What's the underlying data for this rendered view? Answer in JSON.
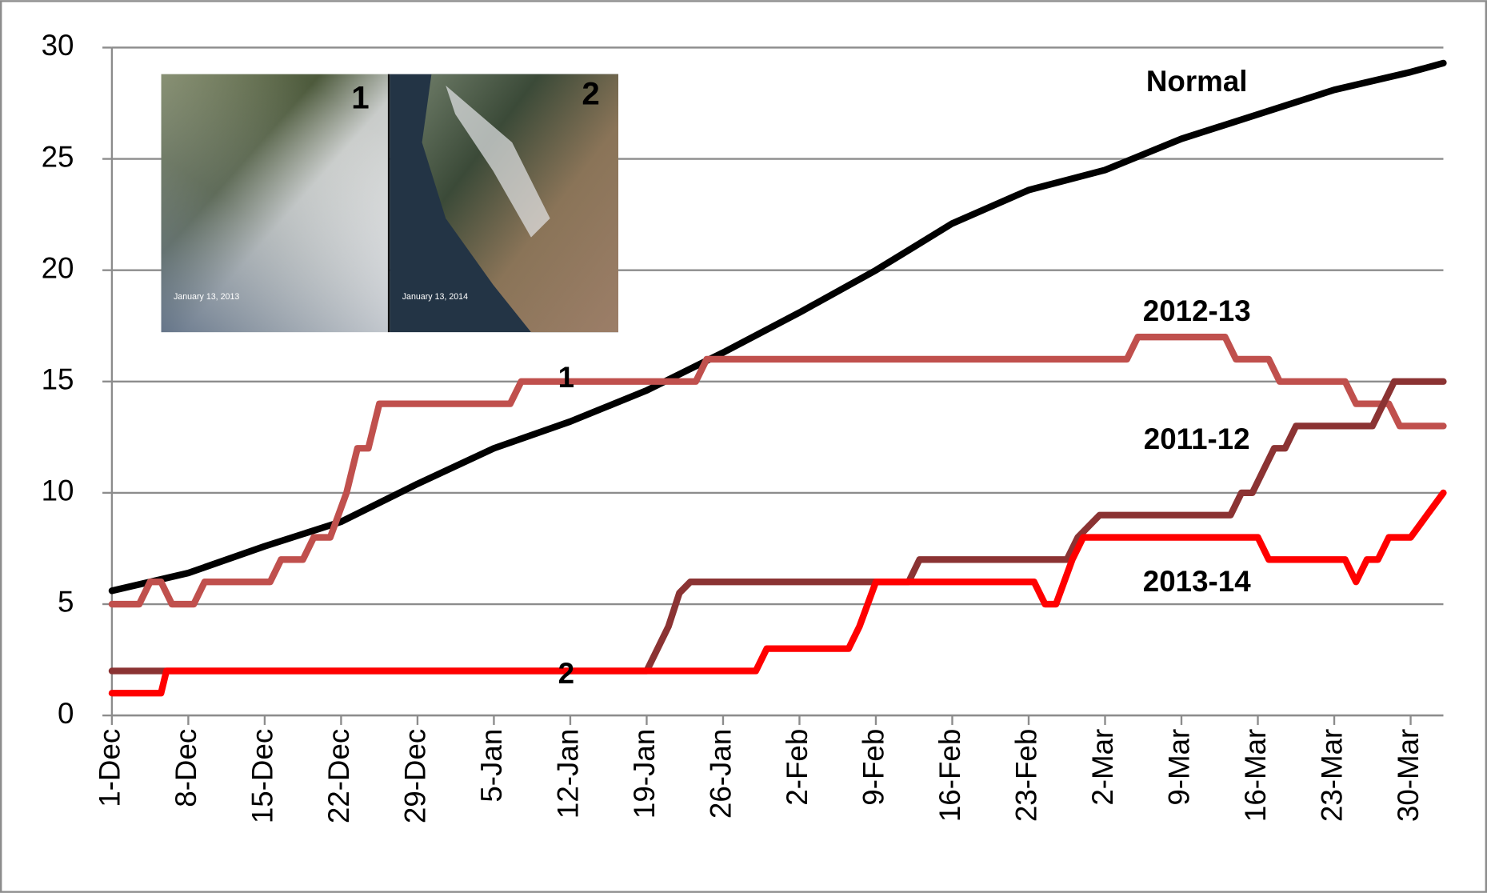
{
  "chart_data": {
    "type": "line",
    "xlim": [
      0,
      122
    ],
    "xticks": [
      {
        "value": 0,
        "label": "1-Dec"
      },
      {
        "value": 7,
        "label": "8-Dec"
      },
      {
        "value": 14,
        "label": "15-Dec"
      },
      {
        "value": 21,
        "label": "22-Dec"
      },
      {
        "value": 28,
        "label": "29-Dec"
      },
      {
        "value": 35,
        "label": "5-Jan"
      },
      {
        "value": 42,
        "label": "12-Jan"
      },
      {
        "value": 49,
        "label": "19-Jan"
      },
      {
        "value": 56,
        "label": "26-Jan"
      },
      {
        "value": 63,
        "label": "2-Feb"
      },
      {
        "value": 70,
        "label": "9-Feb"
      },
      {
        "value": 77,
        "label": "16-Feb"
      },
      {
        "value": 84,
        "label": "23-Feb"
      },
      {
        "value": 91,
        "label": "2-Mar"
      },
      {
        "value": 98,
        "label": "9-Mar"
      },
      {
        "value": 105,
        "label": "16-Mar"
      },
      {
        "value": 112,
        "label": "23-Mar"
      },
      {
        "value": 119,
        "label": "30-Mar"
      }
    ],
    "ylim": [
      0,
      30
    ],
    "yticks": [
      0,
      5,
      10,
      15,
      20,
      25,
      30
    ],
    "grid": true,
    "series": [
      {
        "name": "Normal",
        "color": "#000000",
        "x": [
          0,
          7,
          14,
          21,
          28,
          35,
          42,
          49,
          56,
          63,
          70,
          77,
          84,
          91,
          98,
          105,
          112,
          119,
          122
        ],
        "values": [
          5.6,
          6.4,
          7.6,
          8.7,
          10.4,
          12,
          13.2,
          14.6,
          16.3,
          18.1,
          20,
          22.1,
          23.6,
          24.5,
          25.9,
          27,
          28.1,
          28.9,
          29.3
        ]
      },
      {
        "name": "2012-13",
        "color": "#c0504d",
        "x": [
          0,
          2.5,
          3.5,
          4.5,
          5.5,
          7.5,
          8.5,
          14.5,
          15.5,
          17.5,
          18.5,
          20,
          21.5,
          22.5,
          23.5,
          24.5,
          36.5,
          37.5,
          53.5,
          54.5,
          93,
          94,
          102,
          103,
          106,
          107,
          113,
          114,
          117,
          118,
          122
        ],
        "values": [
          5,
          5,
          6,
          6,
          5,
          5,
          6,
          6,
          7,
          7,
          8,
          8,
          10,
          12,
          12,
          14,
          14,
          15,
          15,
          16,
          16,
          17,
          17,
          16,
          16,
          15,
          15,
          14,
          14,
          13,
          13
        ]
      },
      {
        "name": "2011-12",
        "color": "#8b3333",
        "x": [
          0,
          49,
          50,
          51,
          52,
          53,
          73,
          74,
          87.5,
          88.5,
          90.5,
          102.5,
          103.5,
          104.5,
          106.5,
          107.5,
          108.5,
          115.5,
          117.5,
          122
        ],
        "values": [
          2,
          2,
          3,
          4,
          5.5,
          6,
          6,
          7,
          7,
          8,
          9,
          9,
          10,
          10,
          12,
          12,
          13,
          13,
          15,
          15
        ]
      },
      {
        "name": "2013-14",
        "color": "#ff0000",
        "x": [
          0,
          4.5,
          5,
          59,
          60,
          67.5,
          68.5,
          70,
          84.5,
          85.5,
          86.5,
          88,
          89,
          105,
          106,
          113,
          114,
          115,
          116,
          117,
          119,
          120.5,
          122
        ],
        "values": [
          1,
          1,
          2,
          2,
          3,
          3,
          4,
          6,
          6,
          5,
          5,
          7,
          8,
          8,
          7,
          7,
          6,
          7,
          7,
          8,
          8,
          9,
          10
        ]
      }
    ],
    "annotations": [
      "1",
      "2"
    ],
    "inset": {
      "panels": [
        {
          "number": "1",
          "caption": "January 13, 2013"
        },
        {
          "number": "2",
          "caption": "January 13, 2014"
        }
      ]
    }
  }
}
